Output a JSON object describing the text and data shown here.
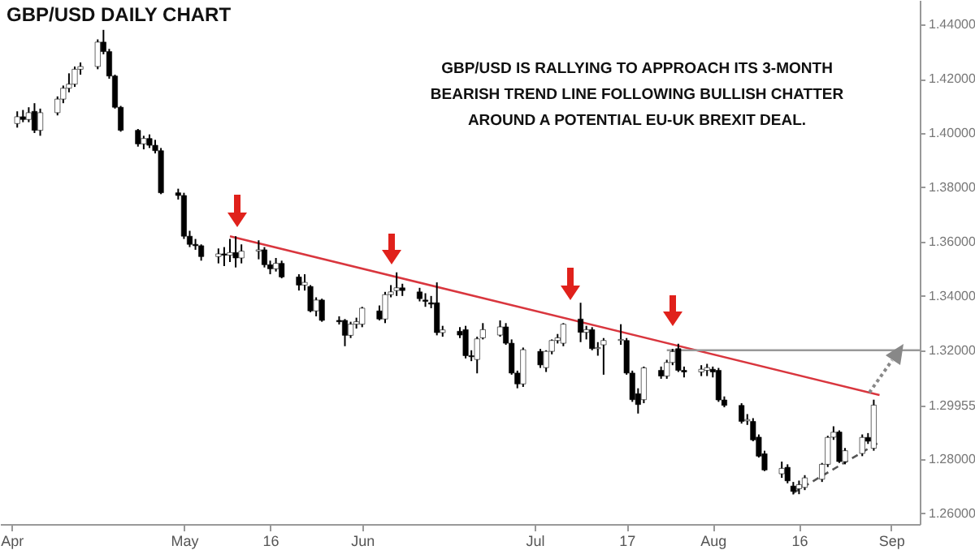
{
  "chart_data": {
    "type": "candlestick",
    "title": "GBP/USD DAILY CHART",
    "annotations": [
      "GBP/USD IS RALLYING TO APPROACH ITS 3-MONTH\nBEARISH TREND LINE FOLLOWING BULLISH CHATTER\nAROUND A POTENTIAL EU-UK BREXIT DEAL."
    ],
    "x": [
      "--04-02",
      "--04-03",
      "--04-04",
      "--04-05",
      "--04-06",
      "--04-09",
      "--04-10",
      "--04-11",
      "--04-12",
      "--04-13",
      "--04-16",
      "--04-17",
      "--04-18",
      "--04-19",
      "--04-20",
      "--04-23",
      "--04-24",
      "--04-25",
      "--04-26",
      "--04-27",
      "--04-30",
      "--05-01",
      "--05-02",
      "--05-03",
      "--05-04",
      "--05-07",
      "--05-08",
      "--05-09",
      "--05-10",
      "--05-11",
      "--05-14",
      "--05-15",
      "--05-16",
      "--05-17",
      "--05-18",
      "--05-21",
      "--05-22",
      "--05-23",
      "--05-24",
      "--05-25",
      "--05-28",
      "--05-29",
      "--05-30",
      "--05-31",
      "--06-01",
      "--06-04",
      "--06-05",
      "--06-06",
      "--06-07",
      "--06-08",
      "--06-11",
      "--06-12",
      "--06-13",
      "--06-14",
      "--06-15",
      "--06-18",
      "--06-19",
      "--06-20",
      "--06-21",
      "--06-22",
      "--06-25",
      "--06-26",
      "--06-27",
      "--06-28",
      "--06-29",
      "--07-02",
      "--07-03",
      "--07-04",
      "--07-05",
      "--07-06",
      "--07-09",
      "--07-10",
      "--07-11",
      "--07-12",
      "--07-13",
      "--07-16",
      "--07-17",
      "--07-18",
      "--07-19",
      "--07-20",
      "--07-23",
      "--07-24",
      "--07-25",
      "--07-26",
      "--07-27",
      "--07-30",
      "--07-31",
      "--08-01",
      "--08-02",
      "--08-03",
      "--08-06",
      "--08-07",
      "--08-08",
      "--08-09",
      "--08-10",
      "--08-13",
      "--08-14",
      "--08-15",
      "--08-16",
      "--08-17",
      "--08-20",
      "--08-21",
      "--08-22",
      "--08-23",
      "--08-24",
      "--08-27",
      "--08-28",
      "--08-29"
    ],
    "ohlc": [
      [
        1.4035,
        1.408,
        1.402,
        1.406
      ],
      [
        1.406,
        1.4085,
        1.404,
        1.405
      ],
      [
        1.405,
        1.4095,
        1.404,
        1.4075
      ],
      [
        1.408,
        1.411,
        1.4,
        1.401
      ],
      [
        1.401,
        1.409,
        1.399,
        1.4075
      ],
      [
        1.4075,
        1.4135,
        1.4065,
        1.4125
      ],
      [
        1.4125,
        1.4175,
        1.411,
        1.4165
      ],
      [
        1.4165,
        1.422,
        1.415,
        1.418
      ],
      [
        1.418,
        1.4245,
        1.417,
        1.4235
      ],
      [
        1.4235,
        1.426,
        1.4215,
        1.4245
      ],
      [
        1.4245,
        1.4345,
        1.4235,
        1.4335
      ],
      [
        1.4335,
        1.438,
        1.429,
        1.43
      ],
      [
        1.43,
        1.431,
        1.42,
        1.421
      ],
      [
        1.421,
        1.4215,
        1.409,
        1.4095
      ],
      [
        1.4095,
        1.41,
        1.4005,
        1.401
      ],
      [
        1.401,
        1.4015,
        1.395,
        1.396
      ],
      [
        1.396,
        1.399,
        1.394,
        1.398
      ],
      [
        1.398,
        1.3995,
        1.3945,
        1.3955
      ],
      [
        1.3955,
        1.3975,
        1.3925,
        1.3935
      ],
      [
        1.3935,
        1.3945,
        1.3775,
        1.378
      ],
      [
        1.378,
        1.3795,
        1.3755,
        1.377
      ],
      [
        1.377,
        1.378,
        1.361,
        1.362
      ],
      [
        1.362,
        1.364,
        1.358,
        1.359
      ],
      [
        1.359,
        1.361,
        1.357,
        1.3585
      ],
      [
        1.3585,
        1.359,
        1.353,
        1.3545
      ],
      [
        1.3545,
        1.3575,
        1.352,
        1.3555
      ],
      [
        1.3555,
        1.358,
        1.351,
        1.355
      ],
      [
        1.355,
        1.361,
        1.3525,
        1.356
      ],
      [
        1.356,
        1.362,
        1.3505,
        1.354
      ],
      [
        1.354,
        1.359,
        1.352,
        1.3565
      ],
      [
        1.3565,
        1.3605,
        1.3535,
        1.357
      ],
      [
        1.357,
        1.358,
        1.3505,
        1.3515
      ],
      [
        1.3515,
        1.353,
        1.348,
        1.35
      ],
      [
        1.35,
        1.354,
        1.349,
        1.352
      ],
      [
        1.352,
        1.353,
        1.3465,
        1.347
      ],
      [
        1.347,
        1.348,
        1.342,
        1.344
      ],
      [
        1.344,
        1.348,
        1.342,
        1.345
      ],
      [
        1.3435,
        1.344,
        1.334,
        1.3345
      ],
      [
        1.3345,
        1.3395,
        1.3325,
        1.3385
      ],
      [
        1.3385,
        1.339,
        1.3305,
        1.331
      ],
      [
        1.331,
        1.3325,
        1.3295,
        1.3305
      ],
      [
        1.331,
        1.3315,
        1.3215,
        1.3255
      ],
      [
        1.3255,
        1.3305,
        1.3245,
        1.3296
      ],
      [
        1.3296,
        1.332,
        1.328,
        1.3305
      ],
      [
        1.3296,
        1.336,
        1.3285,
        1.3355
      ],
      [
        1.3345,
        1.3365,
        1.331,
        1.3315
      ],
      [
        1.3315,
        1.3415,
        1.33,
        1.3405
      ],
      [
        1.3405,
        1.344,
        1.3395,
        1.3415
      ],
      [
        1.342,
        1.3487,
        1.34,
        1.343
      ],
      [
        1.343,
        1.3445,
        1.34,
        1.342
      ],
      [
        1.3415,
        1.343,
        1.338,
        1.339
      ],
      [
        1.3385,
        1.341,
        1.336,
        1.338
      ],
      [
        1.3375,
        1.34,
        1.3355,
        1.337
      ],
      [
        1.3375,
        1.345,
        1.3255,
        1.3265
      ],
      [
        1.3265,
        1.329,
        1.325,
        1.3275
      ],
      [
        1.327,
        1.3285,
        1.3245,
        1.3256
      ],
      [
        1.3276,
        1.329,
        1.317,
        1.318
      ],
      [
        1.318,
        1.32,
        1.316,
        1.3176
      ],
      [
        1.3166,
        1.325,
        1.3115,
        1.3242
      ],
      [
        1.3246,
        1.33,
        1.324,
        1.3276
      ],
      [
        1.3256,
        1.331,
        1.325,
        1.3286
      ],
      [
        1.3286,
        1.33,
        1.322,
        1.3226
      ],
      [
        1.3226,
        1.324,
        1.311,
        1.3116
      ],
      [
        1.3116,
        1.3125,
        1.306,
        1.3076
      ],
      [
        1.3076,
        1.321,
        1.3065,
        1.3202
      ],
      [
        1.3196,
        1.3205,
        1.3135,
        1.3146
      ],
      [
        1.3136,
        1.32,
        1.312,
        1.3196
      ],
      [
        1.3196,
        1.324,
        1.3185,
        1.3236
      ],
      [
        1.3236,
        1.326,
        1.3225,
        1.3246
      ],
      [
        1.3226,
        1.33,
        1.3215,
        1.3296
      ],
      [
        1.3315,
        1.3375,
        1.323,
        1.3266
      ],
      [
        1.3266,
        1.329,
        1.324,
        1.3276
      ],
      [
        1.3276,
        1.3285,
        1.32,
        1.3206
      ],
      [
        1.3206,
        1.323,
        1.318,
        1.321
      ],
      [
        1.322,
        1.3245,
        1.311,
        1.3236
      ],
      [
        1.3236,
        1.3296,
        1.322,
        1.324
      ],
      [
        1.3236,
        1.3245,
        1.311,
        1.3116
      ],
      [
        1.3116,
        1.3125,
        1.301,
        1.3018
      ],
      [
        1.304,
        1.306,
        1.2967,
        1.3
      ],
      [
        1.3018,
        1.314,
        1.3005,
        1.3135
      ],
      [
        1.3126,
        1.314,
        1.3095,
        1.3105
      ],
      [
        1.3105,
        1.3165,
        1.3095,
        1.3155
      ],
      [
        1.3155,
        1.3205,
        1.3145,
        1.3195
      ],
      [
        1.3206,
        1.3224,
        1.312,
        1.3126
      ],
      [
        1.3126,
        1.314,
        1.31,
        1.312
      ],
      [
        1.312,
        1.3145,
        1.3105,
        1.313
      ],
      [
        1.3126,
        1.315,
        1.3105,
        1.3136
      ],
      [
        1.313,
        1.314,
        1.31,
        1.312
      ],
      [
        1.3126,
        1.3135,
        1.301,
        1.3017
      ],
      [
        1.3017,
        1.303,
        1.299,
        1.2997
      ],
      [
        1.2997,
        1.3005,
        1.293,
        1.2938
      ],
      [
        1.294,
        1.2965,
        1.2925,
        1.2945
      ],
      [
        1.2938,
        1.295,
        1.2865,
        1.287
      ],
      [
        1.288,
        1.289,
        1.2805,
        1.281
      ],
      [
        1.2819,
        1.283,
        1.2755,
        1.2759
      ],
      [
        1.2745,
        1.279,
        1.273,
        1.2765
      ],
      [
        1.2769,
        1.278,
        1.271,
        1.2719
      ],
      [
        1.27,
        1.2715,
        1.2669,
        1.268
      ],
      [
        1.269,
        1.272,
        1.267,
        1.2705
      ],
      [
        1.2695,
        1.274,
        1.2685,
        1.273
      ],
      [
        1.2725,
        1.2785,
        1.2715,
        1.278
      ],
      [
        1.278,
        1.2885,
        1.277,
        1.2879
      ],
      [
        1.288,
        1.292,
        1.287,
        1.2898
      ],
      [
        1.2899,
        1.2905,
        1.2785,
        1.279
      ],
      [
        1.279,
        1.284,
        1.278,
        1.283
      ],
      [
        1.282,
        1.289,
        1.281,
        1.2879
      ],
      [
        1.2879,
        1.2895,
        1.2855,
        1.2865
      ],
      [
        1.2839,
        1.3018,
        1.283,
        1.2998
      ]
    ],
    "series": [
      {
        "type": "line",
        "color": "#d9363e",
        "line_style": "solid",
        "x": [
          "--05-09",
          "--08-30"
        ],
        "values": [
          1.362,
          1.3035
        ]
      },
      {
        "type": "line",
        "color": "#999999",
        "line_style": "solid",
        "x": [
          "--07-24",
          "--09-06"
        ],
        "values": [
          1.32,
          1.32
        ]
      },
      {
        "type": "line",
        "color": "#555555",
        "line_style": "dashed",
        "x": [
          "--08-15",
          "--08-30"
        ],
        "values": [
          1.2675,
          1.2862
        ]
      }
    ],
    "xlim": [
      "--03-30",
      "--09-06"
    ],
    "xticks": [
      {
        "value": "--04-01",
        "label": "Apr"
      },
      {
        "value": "--05-01",
        "label": "May"
      },
      {
        "value": "--05-16",
        "label": "16"
      },
      {
        "value": "--06-01",
        "label": "Jun"
      },
      {
        "value": "--07-01",
        "label": "Jul"
      },
      {
        "value": "--07-17",
        "label": "17"
      },
      {
        "value": "--08-01",
        "label": "Aug"
      },
      {
        "value": "--08-16",
        "label": "16"
      },
      {
        "value": "--09-01",
        "label": "Sep"
      }
    ],
    "ylim": [
      1.256,
      1.449
    ],
    "yticks": [
      {
        "value": 1.26,
        "label": "1.26000"
      },
      {
        "value": 1.28,
        "label": "1.28000"
      },
      {
        "value": 1.29955,
        "label": "1.29955"
      },
      {
        "value": 1.32,
        "label": "1.32000"
      },
      {
        "value": 1.34,
        "label": "1.34000"
      },
      {
        "value": 1.36,
        "label": "1.36000"
      },
      {
        "value": 1.38,
        "label": "1.38000"
      },
      {
        "value": 1.4,
        "label": "1.40000"
      },
      {
        "value": 1.42,
        "label": "1.42000"
      },
      {
        "value": 1.44,
        "label": "1.44000"
      }
    ]
  }
}
